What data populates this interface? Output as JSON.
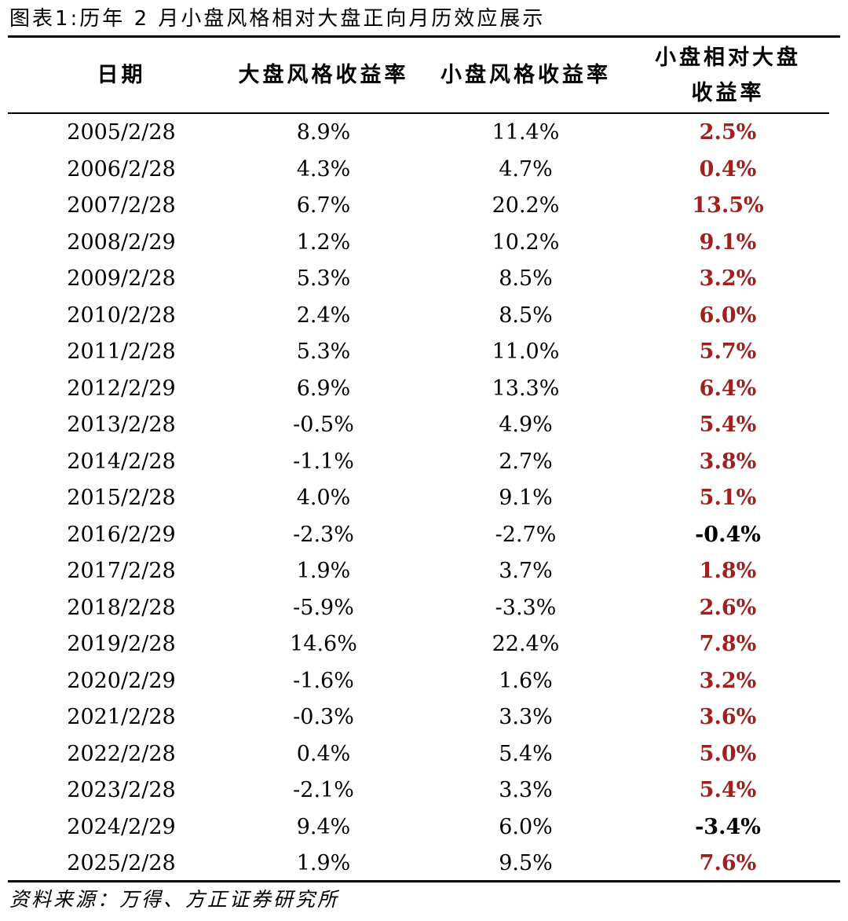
{
  "title": "图表1:历年 2 月小盘风格相对大盘正向月历效应展示",
  "table": {
    "headers": [
      "日期",
      "大盘风格收益率",
      "小盘风格收益率",
      "小盘相对大盘收益率"
    ],
    "rows": [
      [
        "2005/2/28",
        "8.9%",
        "11.4%",
        "2.5%"
      ],
      [
        "2006/2/28",
        "4.3%",
        "4.7%",
        "0.4%"
      ],
      [
        "2007/2/28",
        "6.7%",
        "20.2%",
        "13.5%"
      ],
      [
        "2008/2/29",
        "1.2%",
        "10.2%",
        "9.1%"
      ],
      [
        "2009/2/28",
        "5.3%",
        "8.5%",
        "3.2%"
      ],
      [
        "2010/2/28",
        "2.4%",
        "8.5%",
        "6.0%"
      ],
      [
        "2011/2/28",
        "5.3%",
        "11.0%",
        "5.7%"
      ],
      [
        "2012/2/29",
        "6.9%",
        "13.3%",
        "6.4%"
      ],
      [
        "2013/2/28",
        "-0.5%",
        "4.9%",
        "5.4%"
      ],
      [
        "2014/2/28",
        "-1.1%",
        "2.7%",
        "3.8%"
      ],
      [
        "2015/2/28",
        "4.0%",
        "9.1%",
        "5.1%"
      ],
      [
        "2016/2/29",
        "-2.3%",
        "-2.7%",
        "-0.4%"
      ],
      [
        "2017/2/28",
        "1.9%",
        "3.7%",
        "1.8%"
      ],
      [
        "2018/2/28",
        "-5.9%",
        "-3.3%",
        "2.6%"
      ],
      [
        "2019/2/28",
        "14.6%",
        "22.4%",
        "7.8%"
      ],
      [
        "2020/2/29",
        "-1.6%",
        "1.6%",
        "3.2%"
      ],
      [
        "2021/2/28",
        "-0.3%",
        "3.3%",
        "3.6%"
      ],
      [
        "2022/2/28",
        "0.4%",
        "5.4%",
        "5.0%"
      ],
      [
        "2023/2/28",
        "-2.1%",
        "3.3%",
        "5.4%"
      ],
      [
        "2024/2/29",
        "9.4%",
        "6.0%",
        "-3.4%"
      ],
      [
        "2025/2/28",
        "1.9%",
        "9.5%",
        "7.6%"
      ]
    ]
  },
  "colors": {
    "positive_relative": "#a0201f",
    "negative_relative": "#000000"
  },
  "source": "资料来源：万得、方正证券研究所"
}
